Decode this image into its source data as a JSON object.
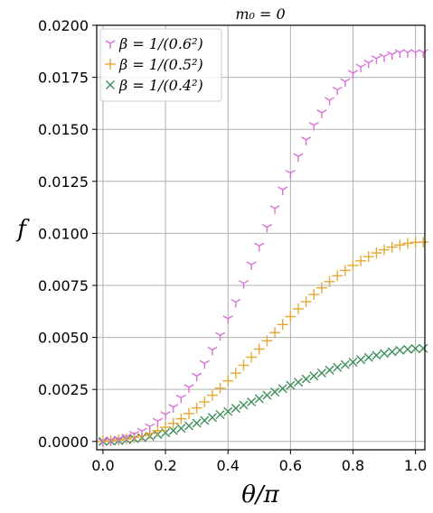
{
  "chart_data": {
    "type": "scatter",
    "title": "m₀ = 0",
    "xlabel": "θ/π",
    "ylabel": "f",
    "xlim": [
      -0.02,
      1.03
    ],
    "ylim": [
      -0.0004,
      0.02
    ],
    "xticks": [
      "0.0",
      "0.2",
      "0.4",
      "0.6",
      "0.8",
      "1.0"
    ],
    "yticks": [
      "0.0000",
      "0.0025",
      "0.0050",
      "0.0075",
      "0.0100",
      "0.0125",
      "0.0150",
      "0.0175",
      "0.0200"
    ],
    "grid": true,
    "legend_position": "top-left",
    "x": [
      0.0,
      0.025,
      0.05,
      0.075,
      0.1,
      0.125,
      0.15,
      0.175,
      0.2,
      0.225,
      0.25,
      0.275,
      0.3,
      0.325,
      0.35,
      0.375,
      0.4,
      0.425,
      0.45,
      0.475,
      0.5,
      0.525,
      0.55,
      0.575,
      0.6,
      0.625,
      0.65,
      0.675,
      0.7,
      0.725,
      0.75,
      0.775,
      0.8,
      0.825,
      0.85,
      0.875,
      0.9,
      0.925,
      0.95,
      0.975,
      1.0,
      1.025
    ],
    "series": [
      {
        "name": "β = 1/(0.6²)",
        "color": "#da70d6",
        "marker": "tri_down",
        "values": [
          0.0,
          6e-05,
          0.00012,
          0.00022,
          0.00035,
          0.0005,
          0.00072,
          0.00098,
          0.0013,
          0.00165,
          0.0021,
          0.0026,
          0.00315,
          0.00375,
          0.0044,
          0.0051,
          0.0059,
          0.0067,
          0.0076,
          0.0085,
          0.0094,
          0.0103,
          0.0112,
          0.0121,
          0.0129,
          0.0137,
          0.0145,
          0.0152,
          0.0158,
          0.0164,
          0.0169,
          0.0173,
          0.0177,
          0.018,
          0.0182,
          0.0184,
          0.0185,
          0.0186,
          0.0187,
          0.0187,
          0.0187,
          0.0187
        ]
      },
      {
        "name": "β = 1/(0.5²)",
        "color": "#e6a835",
        "marker": "plus",
        "values": [
          0.0,
          3e-05,
          7e-05,
          0.00012,
          0.00019,
          0.00028,
          0.00039,
          0.00052,
          0.00068,
          0.00087,
          0.00109,
          0.00134,
          0.00161,
          0.0019,
          0.00222,
          0.00256,
          0.00291,
          0.00328,
          0.00366,
          0.00405,
          0.00444,
          0.00484,
          0.00523,
          0.00562,
          0.006,
          0.00637,
          0.00672,
          0.00706,
          0.00738,
          0.00768,
          0.00796,
          0.00822,
          0.00846,
          0.00868,
          0.00888,
          0.00906,
          0.00921,
          0.00934,
          0.00944,
          0.00952,
          0.00957,
          0.00958
        ]
      },
      {
        "name": "β = 1/(0.4²)",
        "color": "#3d8f5a",
        "marker": "x",
        "values": [
          0.0,
          2e-05,
          4e-05,
          8e-05,
          0.00013,
          0.00018,
          0.00025,
          0.00033,
          0.00042,
          0.00052,
          0.00063,
          0.00075,
          0.00088,
          0.00101,
          0.00115,
          0.00129,
          0.00144,
          0.00159,
          0.00175,
          0.0019,
          0.00206,
          0.00222,
          0.00238,
          0.00254,
          0.0027,
          0.00285,
          0.003,
          0.00315,
          0.00329,
          0.00343,
          0.00356,
          0.00369,
          0.00381,
          0.00393,
          0.00404,
          0.00414,
          0.00423,
          0.00431,
          0.00438,
          0.00443,
          0.00446,
          0.00447
        ]
      }
    ]
  }
}
